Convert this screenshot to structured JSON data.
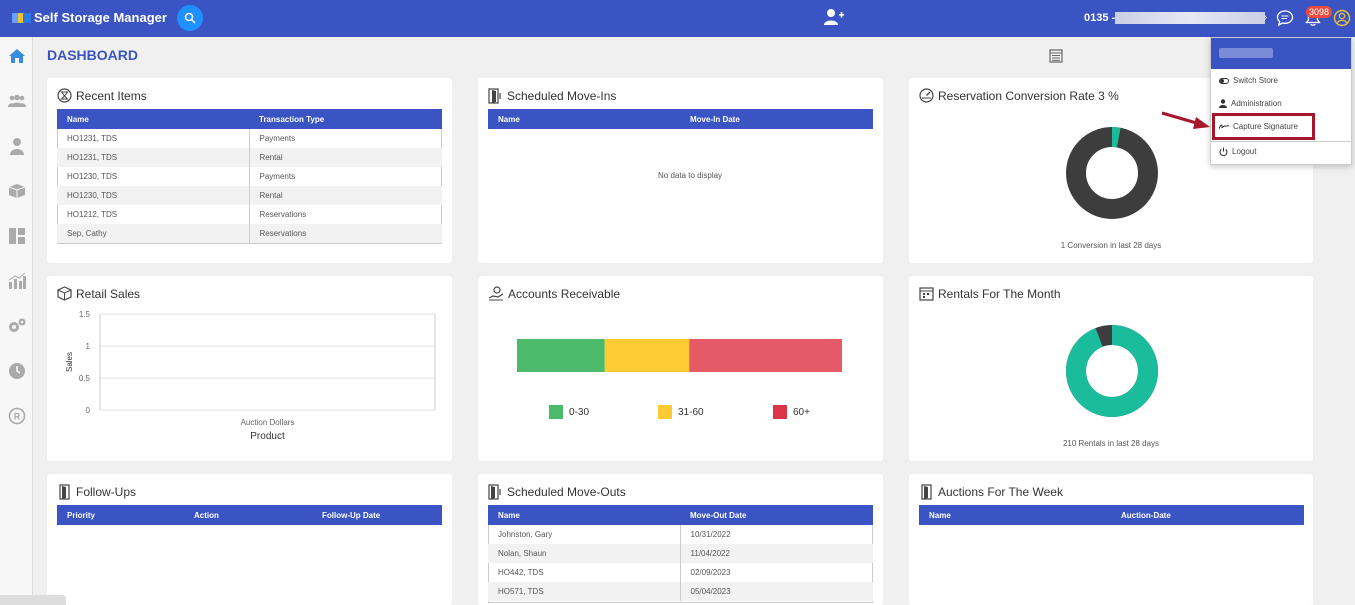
{
  "app": {
    "title": "Self Storage Manager",
    "store_prefix": "0135 -"
  },
  "topbar": {
    "notification_count": "3098"
  },
  "page": {
    "title": "DASHBOARD"
  },
  "recent_items": {
    "title": "Recent Items",
    "headers": [
      "Name",
      "Transaction Type"
    ],
    "rows": [
      [
        "HO1231, TDS",
        "Payments"
      ],
      [
        "HO1231, TDS",
        "Rental"
      ],
      [
        "HO1230, TDS",
        "Payments"
      ],
      [
        "HO1230, TDS",
        "Rental"
      ],
      [
        "HO1212, TDS",
        "Reservations"
      ],
      [
        "Sep, Cathy",
        "Reservations"
      ]
    ]
  },
  "move_ins": {
    "title": "Scheduled Move-Ins",
    "headers": [
      "Name",
      "Move-In Date"
    ],
    "empty": "No data to display"
  },
  "conversion": {
    "title": "Reservation Conversion Rate 3 %",
    "caption": "1 Conversion in last 28 days",
    "rate_percent": 3,
    "colors": {
      "fill": "#1abc9c",
      "rest": "#3d3d3d"
    }
  },
  "retail_sales": {
    "title": "Retail Sales",
    "chart_data": {
      "type": "bar",
      "categories": [
        "Auction Dollars"
      ],
      "values": [
        0
      ],
      "xlabel": "Product",
      "ylabel": "Sales",
      "ylim": [
        0,
        1.5
      ],
      "yticks": [
        "1.5",
        "1",
        "0.5",
        "0"
      ],
      "grid": true
    }
  },
  "accounts_receivable": {
    "title": "Accounts Receivable",
    "chart_data": {
      "type": "bar",
      "series": [
        {
          "name": "0-30",
          "value": 27,
          "color": "#4cba6a"
        },
        {
          "name": "31-60",
          "value": 26,
          "color": "#fecb32"
        },
        {
          "name": "60+",
          "value": 47,
          "color": "#e45a66"
        }
      ]
    },
    "legend": [
      "0-30",
      "31-60",
      "60+"
    ]
  },
  "rentals": {
    "title": "Rentals For The Month",
    "caption": "210 Rentals in last 28 days",
    "fill_percent": 94,
    "colors": {
      "fill": "#1abc9c",
      "rest": "#3d3d3d"
    }
  },
  "follow_ups": {
    "title": "Follow-Ups",
    "headers": [
      "Priority",
      "Action",
      "Follow-Up Date"
    ]
  },
  "move_outs": {
    "title": "Scheduled Move-Outs",
    "headers": [
      "Name",
      "Move-Out Date"
    ],
    "rows": [
      [
        "Johnston, Gary",
        "10/31/2022"
      ],
      [
        "Nolan, Shaun",
        "11/04/2022"
      ],
      [
        "HO442, TDS",
        "02/09/2023"
      ],
      [
        "HO571, TDS",
        "05/04/2023"
      ]
    ]
  },
  "auctions": {
    "title": "Auctions For The Week",
    "headers": [
      "Name",
      "Auction-Date"
    ]
  },
  "user_menu": {
    "items": [
      "Switch Store",
      "Administration",
      "Capture Signature",
      "Logout"
    ]
  },
  "icons": {
    "sidebar": [
      "home-icon",
      "users-icon",
      "person-icon",
      "box-icon",
      "dashboard-icon",
      "chart-icon",
      "gears-icon",
      "clock-icon",
      "registered-icon"
    ]
  }
}
